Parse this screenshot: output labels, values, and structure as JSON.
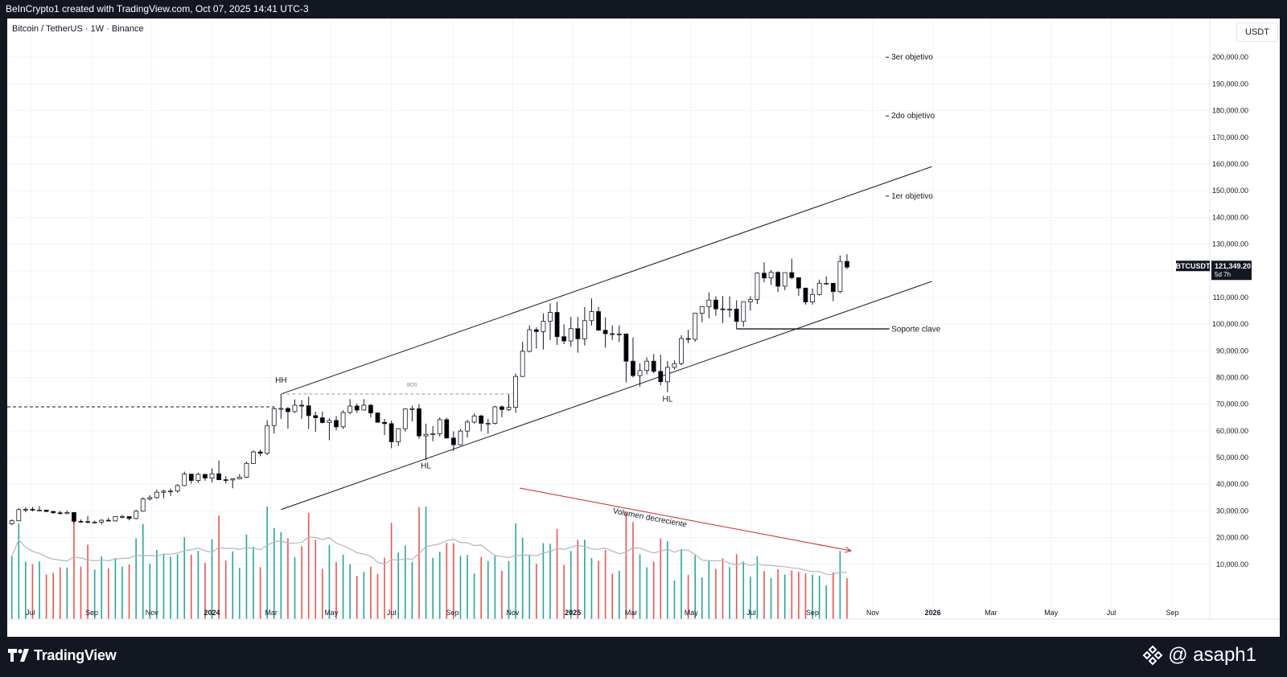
{
  "header": {
    "caption": "BeInCrypto1 created with TradingView.com, Oct 07, 2025 14:41 UTC-3"
  },
  "symbol_line": "Bitcoin / TetherUS · 1W · Binance",
  "currency_button": "USDT",
  "price_tag": {
    "ticker": "BTCUSDT",
    "price": "121,349.20",
    "countdown": "5d 7h"
  },
  "footer": {
    "brand": "TradingView",
    "author": "@ asaph1"
  },
  "colors": {
    "background": "#131722",
    "panel": "#ffffff",
    "candle_up": "#ffffff",
    "candle_down": "#000000",
    "vol_up": "#26a69a",
    "vol_down": "#ef5350",
    "arrow": "#c62828",
    "grid": "#f0f3fa"
  },
  "chart_data": {
    "type": "candlestick",
    "title": "Bitcoin / TetherUS · 1W · Binance",
    "y_axis": {
      "ticks": [
        "10,000.00",
        "20,000.00",
        "30,000.00",
        "40,000.00",
        "50,000.00",
        "60,000.00",
        "70,000.00",
        "80,000.00",
        "90,000.00",
        "100,000.00",
        "110,000.00",
        "120,000.00",
        "130,000.00",
        "140,000.00",
        "150,000.00",
        "160,000.00",
        "170,000.00",
        "180,000.00",
        "190,000.00",
        "200,000.00"
      ],
      "tick_values": [
        10000,
        20000,
        30000,
        40000,
        50000,
        60000,
        70000,
        80000,
        90000,
        100000,
        110000,
        120000,
        130000,
        140000,
        150000,
        160000,
        170000,
        180000,
        190000,
        200000
      ],
      "range": [
        0,
        210000
      ]
    },
    "x_axis": {
      "ticks": [
        "Jul",
        "Sep",
        "Nov",
        "2024",
        "Mar",
        "May",
        "Jul",
        "Sep",
        "Nov",
        "2025",
        "Mar",
        "May",
        "Jul",
        "Sep",
        "Nov",
        "2026",
        "Mar",
        "May",
        "Jul",
        "Sep"
      ],
      "tick_dates": [
        "2023-07-01",
        "2023-09-01",
        "2023-11-01",
        "2024-01-01",
        "2024-03-01",
        "2024-05-01",
        "2024-07-01",
        "2024-09-01",
        "2024-11-01",
        "2025-01-01",
        "2025-03-01",
        "2025-05-01",
        "2025-07-01",
        "2025-09-01",
        "2025-11-01",
        "2026-01-01",
        "2026-03-01",
        "2026-05-01",
        "2026-07-01",
        "2026-09-01"
      ]
    },
    "candles": [
      {
        "date": "2023-06-12",
        "o": 25200,
        "h": 26800,
        "l": 24800,
        "c": 26300
      },
      {
        "date": "2023-06-19",
        "o": 26300,
        "h": 31000,
        "l": 26200,
        "c": 30500
      },
      {
        "date": "2023-06-26",
        "o": 30500,
        "h": 31400,
        "l": 29500,
        "c": 30600
      },
      {
        "date": "2023-07-03",
        "o": 30600,
        "h": 31500,
        "l": 29800,
        "c": 30300
      },
      {
        "date": "2023-07-10",
        "o": 30300,
        "h": 31800,
        "l": 29900,
        "c": 30300
      },
      {
        "date": "2023-07-17",
        "o": 30300,
        "h": 30400,
        "l": 29500,
        "c": 29800
      },
      {
        "date": "2023-07-24",
        "o": 29800,
        "h": 30000,
        "l": 29000,
        "c": 29300
      },
      {
        "date": "2023-07-31",
        "o": 29300,
        "h": 30000,
        "l": 28600,
        "c": 29000
      },
      {
        "date": "2023-08-07",
        "o": 29000,
        "h": 30200,
        "l": 28800,
        "c": 29400
      },
      {
        "date": "2023-08-14",
        "o": 29400,
        "h": 29600,
        "l": 25200,
        "c": 26100
      },
      {
        "date": "2023-08-21",
        "o": 26100,
        "h": 26800,
        "l": 25500,
        "c": 26000
      },
      {
        "date": "2023-08-28",
        "o": 26000,
        "h": 28100,
        "l": 25400,
        "c": 25800
      },
      {
        "date": "2023-09-04",
        "o": 25800,
        "h": 26400,
        "l": 25300,
        "c": 25800
      },
      {
        "date": "2023-09-11",
        "o": 25800,
        "h": 26900,
        "l": 24900,
        "c": 26500
      },
      {
        "date": "2023-09-18",
        "o": 26500,
        "h": 27400,
        "l": 26200,
        "c": 26250
      },
      {
        "date": "2023-09-25",
        "o": 26250,
        "h": 28000,
        "l": 26000,
        "c": 27900
      },
      {
        "date": "2023-10-02",
        "o": 27900,
        "h": 28600,
        "l": 27200,
        "c": 27900
      },
      {
        "date": "2023-10-09",
        "o": 27900,
        "h": 28000,
        "l": 26500,
        "c": 27150
      },
      {
        "date": "2023-10-16",
        "o": 27150,
        "h": 30400,
        "l": 26800,
        "c": 29900
      },
      {
        "date": "2023-10-23",
        "o": 29900,
        "h": 35100,
        "l": 29700,
        "c": 34500
      },
      {
        "date": "2023-10-30",
        "o": 34500,
        "h": 35900,
        "l": 33900,
        "c": 35000
      },
      {
        "date": "2023-11-06",
        "o": 35000,
        "h": 38000,
        "l": 34600,
        "c": 37000
      },
      {
        "date": "2023-11-13",
        "o": 37000,
        "h": 37900,
        "l": 34800,
        "c": 37400
      },
      {
        "date": "2023-11-20",
        "o": 37400,
        "h": 38400,
        "l": 35600,
        "c": 37450
      },
      {
        "date": "2023-11-27",
        "o": 37450,
        "h": 40000,
        "l": 36800,
        "c": 39500
      },
      {
        "date": "2023-12-04",
        "o": 39500,
        "h": 44700,
        "l": 39300,
        "c": 43800
      },
      {
        "date": "2023-12-11",
        "o": 43800,
        "h": 43500,
        "l": 40200,
        "c": 41400
      },
      {
        "date": "2023-12-18",
        "o": 41400,
        "h": 44400,
        "l": 40500,
        "c": 43700
      },
      {
        "date": "2023-12-25",
        "o": 43700,
        "h": 43800,
        "l": 41300,
        "c": 42300
      },
      {
        "date": "2024-01-01",
        "o": 42300,
        "h": 45900,
        "l": 40700,
        "c": 43900
      },
      {
        "date": "2024-01-08",
        "o": 43900,
        "h": 48900,
        "l": 41500,
        "c": 41700
      },
      {
        "date": "2024-01-15",
        "o": 41700,
        "h": 43000,
        "l": 40300,
        "c": 41600
      },
      {
        "date": "2024-01-22",
        "o": 41600,
        "h": 42200,
        "l": 38500,
        "c": 42000
      },
      {
        "date": "2024-01-29",
        "o": 42000,
        "h": 43800,
        "l": 41800,
        "c": 42600
      },
      {
        "date": "2024-02-05",
        "o": 42600,
        "h": 48500,
        "l": 42300,
        "c": 47800
      },
      {
        "date": "2024-02-12",
        "o": 47800,
        "h": 52800,
        "l": 47600,
        "c": 52100
      },
      {
        "date": "2024-02-19",
        "o": 52100,
        "h": 53000,
        "l": 50500,
        "c": 51600
      },
      {
        "date": "2024-02-26",
        "o": 51600,
        "h": 64000,
        "l": 50900,
        "c": 62000
      },
      {
        "date": "2024-03-04",
        "o": 62000,
        "h": 69000,
        "l": 59000,
        "c": 68300
      },
      {
        "date": "2024-03-11",
        "o": 68300,
        "h": 73800,
        "l": 64500,
        "c": 68400
      },
      {
        "date": "2024-03-18",
        "o": 68400,
        "h": 68900,
        "l": 60800,
        "c": 67200
      },
      {
        "date": "2024-03-25",
        "o": 67200,
        "h": 71800,
        "l": 66700,
        "c": 69600
      },
      {
        "date": "2024-04-01",
        "o": 69600,
        "h": 71500,
        "l": 64500,
        "c": 69400
      },
      {
        "date": "2024-04-08",
        "o": 69400,
        "h": 72800,
        "l": 60700,
        "c": 65700
      },
      {
        "date": "2024-04-15",
        "o": 65700,
        "h": 67200,
        "l": 59600,
        "c": 64900
      },
      {
        "date": "2024-04-22",
        "o": 64900,
        "h": 67200,
        "l": 62800,
        "c": 63100
      },
      {
        "date": "2024-04-29",
        "o": 63100,
        "h": 64700,
        "l": 56500,
        "c": 63900
      },
      {
        "date": "2024-05-06",
        "o": 63900,
        "h": 65500,
        "l": 60200,
        "c": 61500
      },
      {
        "date": "2024-05-13",
        "o": 61500,
        "h": 67700,
        "l": 60700,
        "c": 66900
      },
      {
        "date": "2024-05-20",
        "o": 66900,
        "h": 71900,
        "l": 66300,
        "c": 69300
      },
      {
        "date": "2024-05-27",
        "o": 69300,
        "h": 70300,
        "l": 66800,
        "c": 67800
      },
      {
        "date": "2024-06-03",
        "o": 67800,
        "h": 71900,
        "l": 67600,
        "c": 69600
      },
      {
        "date": "2024-06-10",
        "o": 69600,
        "h": 70000,
        "l": 65000,
        "c": 66700
      },
      {
        "date": "2024-06-17",
        "o": 66700,
        "h": 66900,
        "l": 63300,
        "c": 63200
      },
      {
        "date": "2024-06-24",
        "o": 63200,
        "h": 64500,
        "l": 58400,
        "c": 62700
      },
      {
        "date": "2024-07-01",
        "o": 62700,
        "h": 63800,
        "l": 53500,
        "c": 55900
      },
      {
        "date": "2024-07-08",
        "o": 55900,
        "h": 61000,
        "l": 54300,
        "c": 60800
      },
      {
        "date": "2024-07-15",
        "o": 60800,
        "h": 68400,
        "l": 59700,
        "c": 68200
      },
      {
        "date": "2024-07-22",
        "o": 68200,
        "h": 69400,
        "l": 63500,
        "c": 68300
      },
      {
        "date": "2024-07-29",
        "o": 68300,
        "h": 70000,
        "l": 57000,
        "c": 58100
      },
      {
        "date": "2024-08-05",
        "o": 58100,
        "h": 62700,
        "l": 49000,
        "c": 58700
      },
      {
        "date": "2024-08-12",
        "o": 58700,
        "h": 61800,
        "l": 56100,
        "c": 58900
      },
      {
        "date": "2024-08-19",
        "o": 58900,
        "h": 65000,
        "l": 57800,
        "c": 64200
      },
      {
        "date": "2024-08-26",
        "o": 64200,
        "h": 64900,
        "l": 57200,
        "c": 57300
      },
      {
        "date": "2024-09-02",
        "o": 57300,
        "h": 59800,
        "l": 52500,
        "c": 54800
      },
      {
        "date": "2024-09-09",
        "o": 54800,
        "h": 60600,
        "l": 54500,
        "c": 59900
      },
      {
        "date": "2024-09-16",
        "o": 59900,
        "h": 64100,
        "l": 57500,
        "c": 63300
      },
      {
        "date": "2024-09-23",
        "o": 63300,
        "h": 66500,
        "l": 62700,
        "c": 65600
      },
      {
        "date": "2024-09-30",
        "o": 65600,
        "h": 66000,
        "l": 59800,
        "c": 62800
      },
      {
        "date": "2024-10-07",
        "o": 62800,
        "h": 64500,
        "l": 58900,
        "c": 62800
      },
      {
        "date": "2024-10-14",
        "o": 62800,
        "h": 69400,
        "l": 62400,
        "c": 69000
      },
      {
        "date": "2024-10-21",
        "o": 69000,
        "h": 69500,
        "l": 65100,
        "c": 68000
      },
      {
        "date": "2024-10-28",
        "o": 68000,
        "h": 73600,
        "l": 67500,
        "c": 68800
      },
      {
        "date": "2024-11-04",
        "o": 68800,
        "h": 81500,
        "l": 66800,
        "c": 80400
      },
      {
        "date": "2024-11-11",
        "o": 80400,
        "h": 93400,
        "l": 80200,
        "c": 89800
      },
      {
        "date": "2024-11-18",
        "o": 89800,
        "h": 99500,
        "l": 89400,
        "c": 97900
      },
      {
        "date": "2024-11-25",
        "o": 97900,
        "h": 98800,
        "l": 90800,
        "c": 97200
      },
      {
        "date": "2024-12-02",
        "o": 97200,
        "h": 104000,
        "l": 90500,
        "c": 101100
      },
      {
        "date": "2024-12-09",
        "o": 101100,
        "h": 107800,
        "l": 94000,
        "c": 104400
      },
      {
        "date": "2024-12-16",
        "o": 104400,
        "h": 108300,
        "l": 92200,
        "c": 95300
      },
      {
        "date": "2024-12-23",
        "o": 95300,
        "h": 99900,
        "l": 92500,
        "c": 93700
      },
      {
        "date": "2024-12-30",
        "o": 93700,
        "h": 102700,
        "l": 91500,
        "c": 98300
      },
      {
        "date": "2025-01-06",
        "o": 98300,
        "h": 102700,
        "l": 89300,
        "c": 94500
      },
      {
        "date": "2025-01-13",
        "o": 94500,
        "h": 106400,
        "l": 92000,
        "c": 101300
      },
      {
        "date": "2025-01-20",
        "o": 101300,
        "h": 109600,
        "l": 99500,
        "c": 104700
      },
      {
        "date": "2025-01-27",
        "o": 104700,
        "h": 106500,
        "l": 97800,
        "c": 97700
      },
      {
        "date": "2025-02-03",
        "o": 97700,
        "h": 102500,
        "l": 91200,
        "c": 96400
      },
      {
        "date": "2025-02-10",
        "o": 96400,
        "h": 99500,
        "l": 94000,
        "c": 96100
      },
      {
        "date": "2025-02-17",
        "o": 96100,
        "h": 99500,
        "l": 93300,
        "c": 96300
      },
      {
        "date": "2025-02-24",
        "o": 96300,
        "h": 96500,
        "l": 78200,
        "c": 86100
      },
      {
        "date": "2025-03-03",
        "o": 86100,
        "h": 95000,
        "l": 80000,
        "c": 80700
      },
      {
        "date": "2025-03-10",
        "o": 80700,
        "h": 85300,
        "l": 76600,
        "c": 82600
      },
      {
        "date": "2025-03-17",
        "o": 82600,
        "h": 87500,
        "l": 81200,
        "c": 86100
      },
      {
        "date": "2025-03-24",
        "o": 86100,
        "h": 88800,
        "l": 81600,
        "c": 82300
      },
      {
        "date": "2025-03-31",
        "o": 82300,
        "h": 88500,
        "l": 77100,
        "c": 78400
      },
      {
        "date": "2025-04-07",
        "o": 78400,
        "h": 86100,
        "l": 74500,
        "c": 83800
      },
      {
        "date": "2025-04-14",
        "o": 83800,
        "h": 86400,
        "l": 83000,
        "c": 85200
      },
      {
        "date": "2025-04-21",
        "o": 85200,
        "h": 95800,
        "l": 84600,
        "c": 94600
      },
      {
        "date": "2025-04-28",
        "o": 94600,
        "h": 97900,
        "l": 92800,
        "c": 94300
      },
      {
        "date": "2025-05-05",
        "o": 94300,
        "h": 104100,
        "l": 93400,
        "c": 104100
      },
      {
        "date": "2025-05-12",
        "o": 104100,
        "h": 105800,
        "l": 100700,
        "c": 106500
      },
      {
        "date": "2025-05-19",
        "o": 106500,
        "h": 111900,
        "l": 102200,
        "c": 109000
      },
      {
        "date": "2025-05-26",
        "o": 109000,
        "h": 110400,
        "l": 103100,
        "c": 105700
      },
      {
        "date": "2025-06-02",
        "o": 105700,
        "h": 110500,
        "l": 100400,
        "c": 105600
      },
      {
        "date": "2025-06-09",
        "o": 105600,
        "h": 110400,
        "l": 102600,
        "c": 105600
      },
      {
        "date": "2025-06-16",
        "o": 105600,
        "h": 108900,
        "l": 98200,
        "c": 101000
      },
      {
        "date": "2025-06-23",
        "o": 101000,
        "h": 108500,
        "l": 99000,
        "c": 108400
      },
      {
        "date": "2025-06-30",
        "o": 108400,
        "h": 110500,
        "l": 105100,
        "c": 109200
      },
      {
        "date": "2025-07-07",
        "o": 109200,
        "h": 119500,
        "l": 107500,
        "c": 119100
      },
      {
        "date": "2025-07-14",
        "o": 119100,
        "h": 123200,
        "l": 115700,
        "c": 117300
      },
      {
        "date": "2025-07-21",
        "o": 117300,
        "h": 120200,
        "l": 114700,
        "c": 119400
      },
      {
        "date": "2025-07-28",
        "o": 119400,
        "h": 119800,
        "l": 112000,
        "c": 114200
      },
      {
        "date": "2025-08-04",
        "o": 114200,
        "h": 119300,
        "l": 112700,
        "c": 119300
      },
      {
        "date": "2025-08-11",
        "o": 119300,
        "h": 124500,
        "l": 116800,
        "c": 117400
      },
      {
        "date": "2025-08-18",
        "o": 117400,
        "h": 117600,
        "l": 110600,
        "c": 113500
      },
      {
        "date": "2025-08-25",
        "o": 113500,
        "h": 113600,
        "l": 107300,
        "c": 108300
      },
      {
        "date": "2025-09-01",
        "o": 108300,
        "h": 113400,
        "l": 107300,
        "c": 111100
      },
      {
        "date": "2025-09-08",
        "o": 111100,
        "h": 116700,
        "l": 110700,
        "c": 115300
      },
      {
        "date": "2025-09-15",
        "o": 115300,
        "h": 117900,
        "l": 114700,
        "c": 115300
      },
      {
        "date": "2025-09-22",
        "o": 115300,
        "h": 115400,
        "l": 108600,
        "c": 112200
      },
      {
        "date": "2025-09-29",
        "o": 112200,
        "h": 125700,
        "l": 111600,
        "c": 123500
      },
      {
        "date": "2025-10-06",
        "o": 123500,
        "h": 126200,
        "l": 120600,
        "c": 121349
      }
    ],
    "volume_scale_max": 45000,
    "annotations": [
      {
        "text": "3er objetivo",
        "price": 200000,
        "date": "2025-11-20"
      },
      {
        "text": "2do objetivo",
        "price": 178000,
        "date": "2025-11-20"
      },
      {
        "text": "1er objetivo",
        "price": 148000,
        "date": "2025-11-20"
      },
      {
        "text": "Soporte clave",
        "price": 98000,
        "date": "2025-11-20"
      },
      {
        "text": "HH",
        "price": 78000,
        "date": "2024-03-11"
      },
      {
        "text": "HL",
        "price": 46000,
        "date": "2024-08-05"
      },
      {
        "text": "HL",
        "price": 71000,
        "date": "2025-04-07"
      },
      {
        "text": "BOS",
        "price": 75800,
        "date": "2024-07-22"
      },
      {
        "text": "Volumen decreciente",
        "price": 0,
        "date": "2025-02-15"
      }
    ],
    "channel": {
      "upper": [
        {
          "date": "2024-03-11",
          "price": 73800
        },
        {
          "date": "2025-12-31",
          "price": 159000
        }
      ],
      "lower": [
        {
          "date": "2024-03-11",
          "price": 30500
        },
        {
          "date": "2025-12-31",
          "price": 116000
        }
      ]
    },
    "bos_level": {
      "price": 73800,
      "from": "2024-03-11",
      "to": "2024-11-01"
    },
    "prior_level": {
      "price": 69000,
      "from": "2023-06-01",
      "to": "2024-03-04"
    },
    "support_level": {
      "price": 98200,
      "from": "2025-06-16",
      "to": "2025-11-18"
    },
    "grid": true,
    "legend": "none"
  }
}
